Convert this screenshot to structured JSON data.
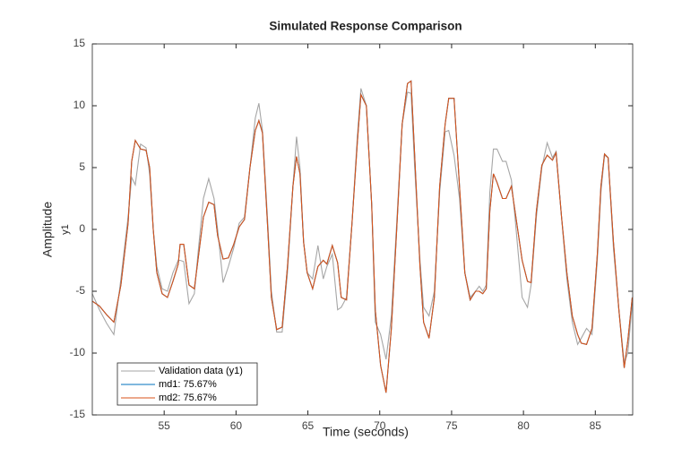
{
  "chart_data": {
    "type": "line",
    "title": "Simulated Response Comparison",
    "xlabel": "Time (seconds)",
    "ylabel": "Amplitude",
    "ylabel_sub": "y1",
    "xlim": [
      50,
      87.6
    ],
    "ylim": [
      -15,
      15
    ],
    "xticks": [
      55,
      60,
      65,
      70,
      75,
      80,
      85
    ],
    "yticks": [
      -15,
      -10,
      -5,
      0,
      5,
      10,
      15
    ],
    "grid": false,
    "legend": "lower left",
    "x": [
      50.0,
      50.5,
      51.0,
      51.5,
      51.99,
      52.49,
      52.74,
      52.99,
      53.36,
      53.74,
      53.99,
      54.24,
      54.49,
      54.86,
      55.23,
      55.61,
      55.98,
      56.11,
      56.36,
      56.73,
      57.1,
      57.35,
      57.73,
      58.1,
      58.47,
      58.72,
      59.1,
      59.47,
      59.84,
      60.22,
      60.59,
      60.97,
      61.34,
      61.59,
      61.84,
      62.21,
      62.46,
      62.83,
      63.21,
      63.58,
      63.96,
      64.21,
      64.45,
      64.7,
      64.95,
      65.33,
      65.7,
      66.07,
      66.32,
      66.7,
      67.07,
      67.32,
      67.69,
      68.07,
      68.44,
      68.69,
      69.07,
      69.44,
      69.69,
      70.06,
      70.44,
      70.81,
      71.18,
      71.56,
      71.93,
      72.18,
      72.43,
      72.8,
      73.05,
      73.43,
      73.8,
      74.17,
      74.55,
      74.8,
      75.17,
      75.55,
      75.92,
      76.29,
      76.67,
      76.92,
      77.17,
      77.41,
      77.66,
      77.91,
      78.16,
      78.54,
      78.79,
      79.16,
      79.41,
      79.91,
      80.28,
      80.53,
      80.9,
      81.28,
      81.65,
      82.02,
      82.27,
      82.65,
      83.02,
      83.4,
      83.77,
      84.02,
      84.39,
      84.77,
      85.14,
      85.39,
      85.64,
      85.89,
      86.26,
      86.64,
      87.01,
      87.26,
      87.57
    ],
    "series": [
      {
        "name": "Validation data (y1)",
        "color": "#a6a6a6",
        "values": [
          -5.2,
          -6.5,
          -7.6,
          -8.5,
          -4.0,
          1.0,
          4.2,
          3.6,
          6.9,
          6.6,
          4.5,
          0,
          -3.0,
          -4.8,
          -5.0,
          -3.5,
          -2.5,
          -2.5,
          -2.6,
          -6.0,
          -5.2,
          -2.0,
          2.5,
          4.1,
          2.5,
          0,
          -4.3,
          -3.0,
          -1.5,
          0.5,
          1.0,
          5.0,
          9.0,
          10.2,
          8.0,
          0.5,
          -5.0,
          -8.3,
          -8.3,
          -3.5,
          3.5,
          7.5,
          5.0,
          -1.0,
          -3.5,
          -4.0,
          -1.3,
          -4.0,
          -3.0,
          -2.0,
          -6.5,
          -6.3,
          -5.5,
          0.5,
          7.5,
          11.4,
          10.0,
          2.0,
          -7.5,
          -8.5,
          -10.5,
          -7.0,
          0.5,
          8.5,
          11.1,
          11.0,
          5.0,
          -2.5,
          -6.3,
          -7.0,
          -5.0,
          3.0,
          7.9,
          8.0,
          6.0,
          2.5,
          -3.5,
          -5.5,
          -5.0,
          -4.6,
          -5.0,
          -4.5,
          3.0,
          6.5,
          6.5,
          5.5,
          5.5,
          4.0,
          1.0,
          -5.5,
          -6.3,
          -4.5,
          1.0,
          5.0,
          7.0,
          5.8,
          6.3,
          1.0,
          -4.0,
          -7.5,
          -9.3,
          -8.8,
          -8.0,
          -8.5,
          -2.5,
          3.0,
          6.0,
          5.8,
          -1.5,
          -6.5,
          -10.8,
          -10.0,
          -6.0
        ]
      },
      {
        "name": "md1: 75.67%",
        "color": "#0072bd",
        "values": [
          -5.8,
          -6.2,
          -6.9,
          -7.5,
          -4.5,
          0.5,
          5.5,
          7.2,
          6.5,
          6.4,
          5.0,
          0,
          -3.5,
          -5.2,
          -5.5,
          -4.2,
          -2.8,
          -1.2,
          -1.2,
          -4.5,
          -4.8,
          -2.5,
          1.0,
          2.2,
          2.0,
          -0.5,
          -2.4,
          -2.3,
          -1.2,
          0.2,
          0.8,
          5.0,
          8.0,
          8.8,
          7.8,
          0,
          -5.5,
          -8.1,
          -7.9,
          -3.0,
          3.5,
          5.9,
          4.5,
          -1.0,
          -3.5,
          -4.8,
          -3.0,
          -2.5,
          -2.8,
          -1.3,
          -2.7,
          -5.5,
          -5.7,
          0.5,
          7.0,
          10.9,
          10.0,
          2.0,
          -6.5,
          -11.0,
          -13.2,
          -8.0,
          0,
          8.5,
          11.8,
          12.0,
          6.0,
          -3.0,
          -7.5,
          -8.8,
          -5.5,
          3.5,
          8.5,
          10.6,
          10.6,
          3.5,
          -3.5,
          -5.7,
          -5.0,
          -5.0,
          -5.2,
          -4.8,
          1.5,
          4.5,
          3.8,
          2.5,
          2.5,
          3.5,
          1.5,
          -2.5,
          -4.2,
          -4.3,
          1.5,
          5.2,
          6.0,
          5.6,
          6.2,
          1.0,
          -3.5,
          -7.0,
          -8.5,
          -9.2,
          -9.3,
          -8.0,
          -2.0,
          3.5,
          6.1,
          5.8,
          -1.0,
          -6.5,
          -11.2,
          -9.0,
          -5.5
        ]
      },
      {
        "name": "md2: 75.67%",
        "color": "#d95319",
        "values": [
          -5.8,
          -6.2,
          -6.9,
          -7.5,
          -4.5,
          0.5,
          5.5,
          7.2,
          6.5,
          6.4,
          5.0,
          0,
          -3.5,
          -5.2,
          -5.5,
          -4.2,
          -2.8,
          -1.2,
          -1.2,
          -4.5,
          -4.8,
          -2.5,
          1.0,
          2.2,
          2.0,
          -0.5,
          -2.4,
          -2.3,
          -1.2,
          0.2,
          0.8,
          5.0,
          8.0,
          8.8,
          7.8,
          0,
          -5.5,
          -8.1,
          -7.9,
          -3.0,
          3.5,
          5.9,
          4.5,
          -1.0,
          -3.5,
          -4.8,
          -3.0,
          -2.5,
          -2.8,
          -1.3,
          -2.7,
          -5.5,
          -5.7,
          0.5,
          7.0,
          10.9,
          10.0,
          2.0,
          -6.5,
          -11.0,
          -13.2,
          -8.0,
          0,
          8.5,
          11.8,
          12.0,
          6.0,
          -3.0,
          -7.5,
          -8.8,
          -5.5,
          3.5,
          8.5,
          10.6,
          10.6,
          3.5,
          -3.5,
          -5.7,
          -5.0,
          -5.0,
          -5.2,
          -4.8,
          1.5,
          4.5,
          3.8,
          2.5,
          2.5,
          3.5,
          1.5,
          -2.5,
          -4.2,
          -4.3,
          1.5,
          5.2,
          6.0,
          5.6,
          6.2,
          1.0,
          -3.5,
          -7.0,
          -8.5,
          -9.2,
          -9.3,
          -8.0,
          -2.0,
          3.5,
          6.1,
          5.8,
          -1.0,
          -6.5,
          -11.2,
          -9.0,
          -5.5
        ]
      }
    ]
  }
}
